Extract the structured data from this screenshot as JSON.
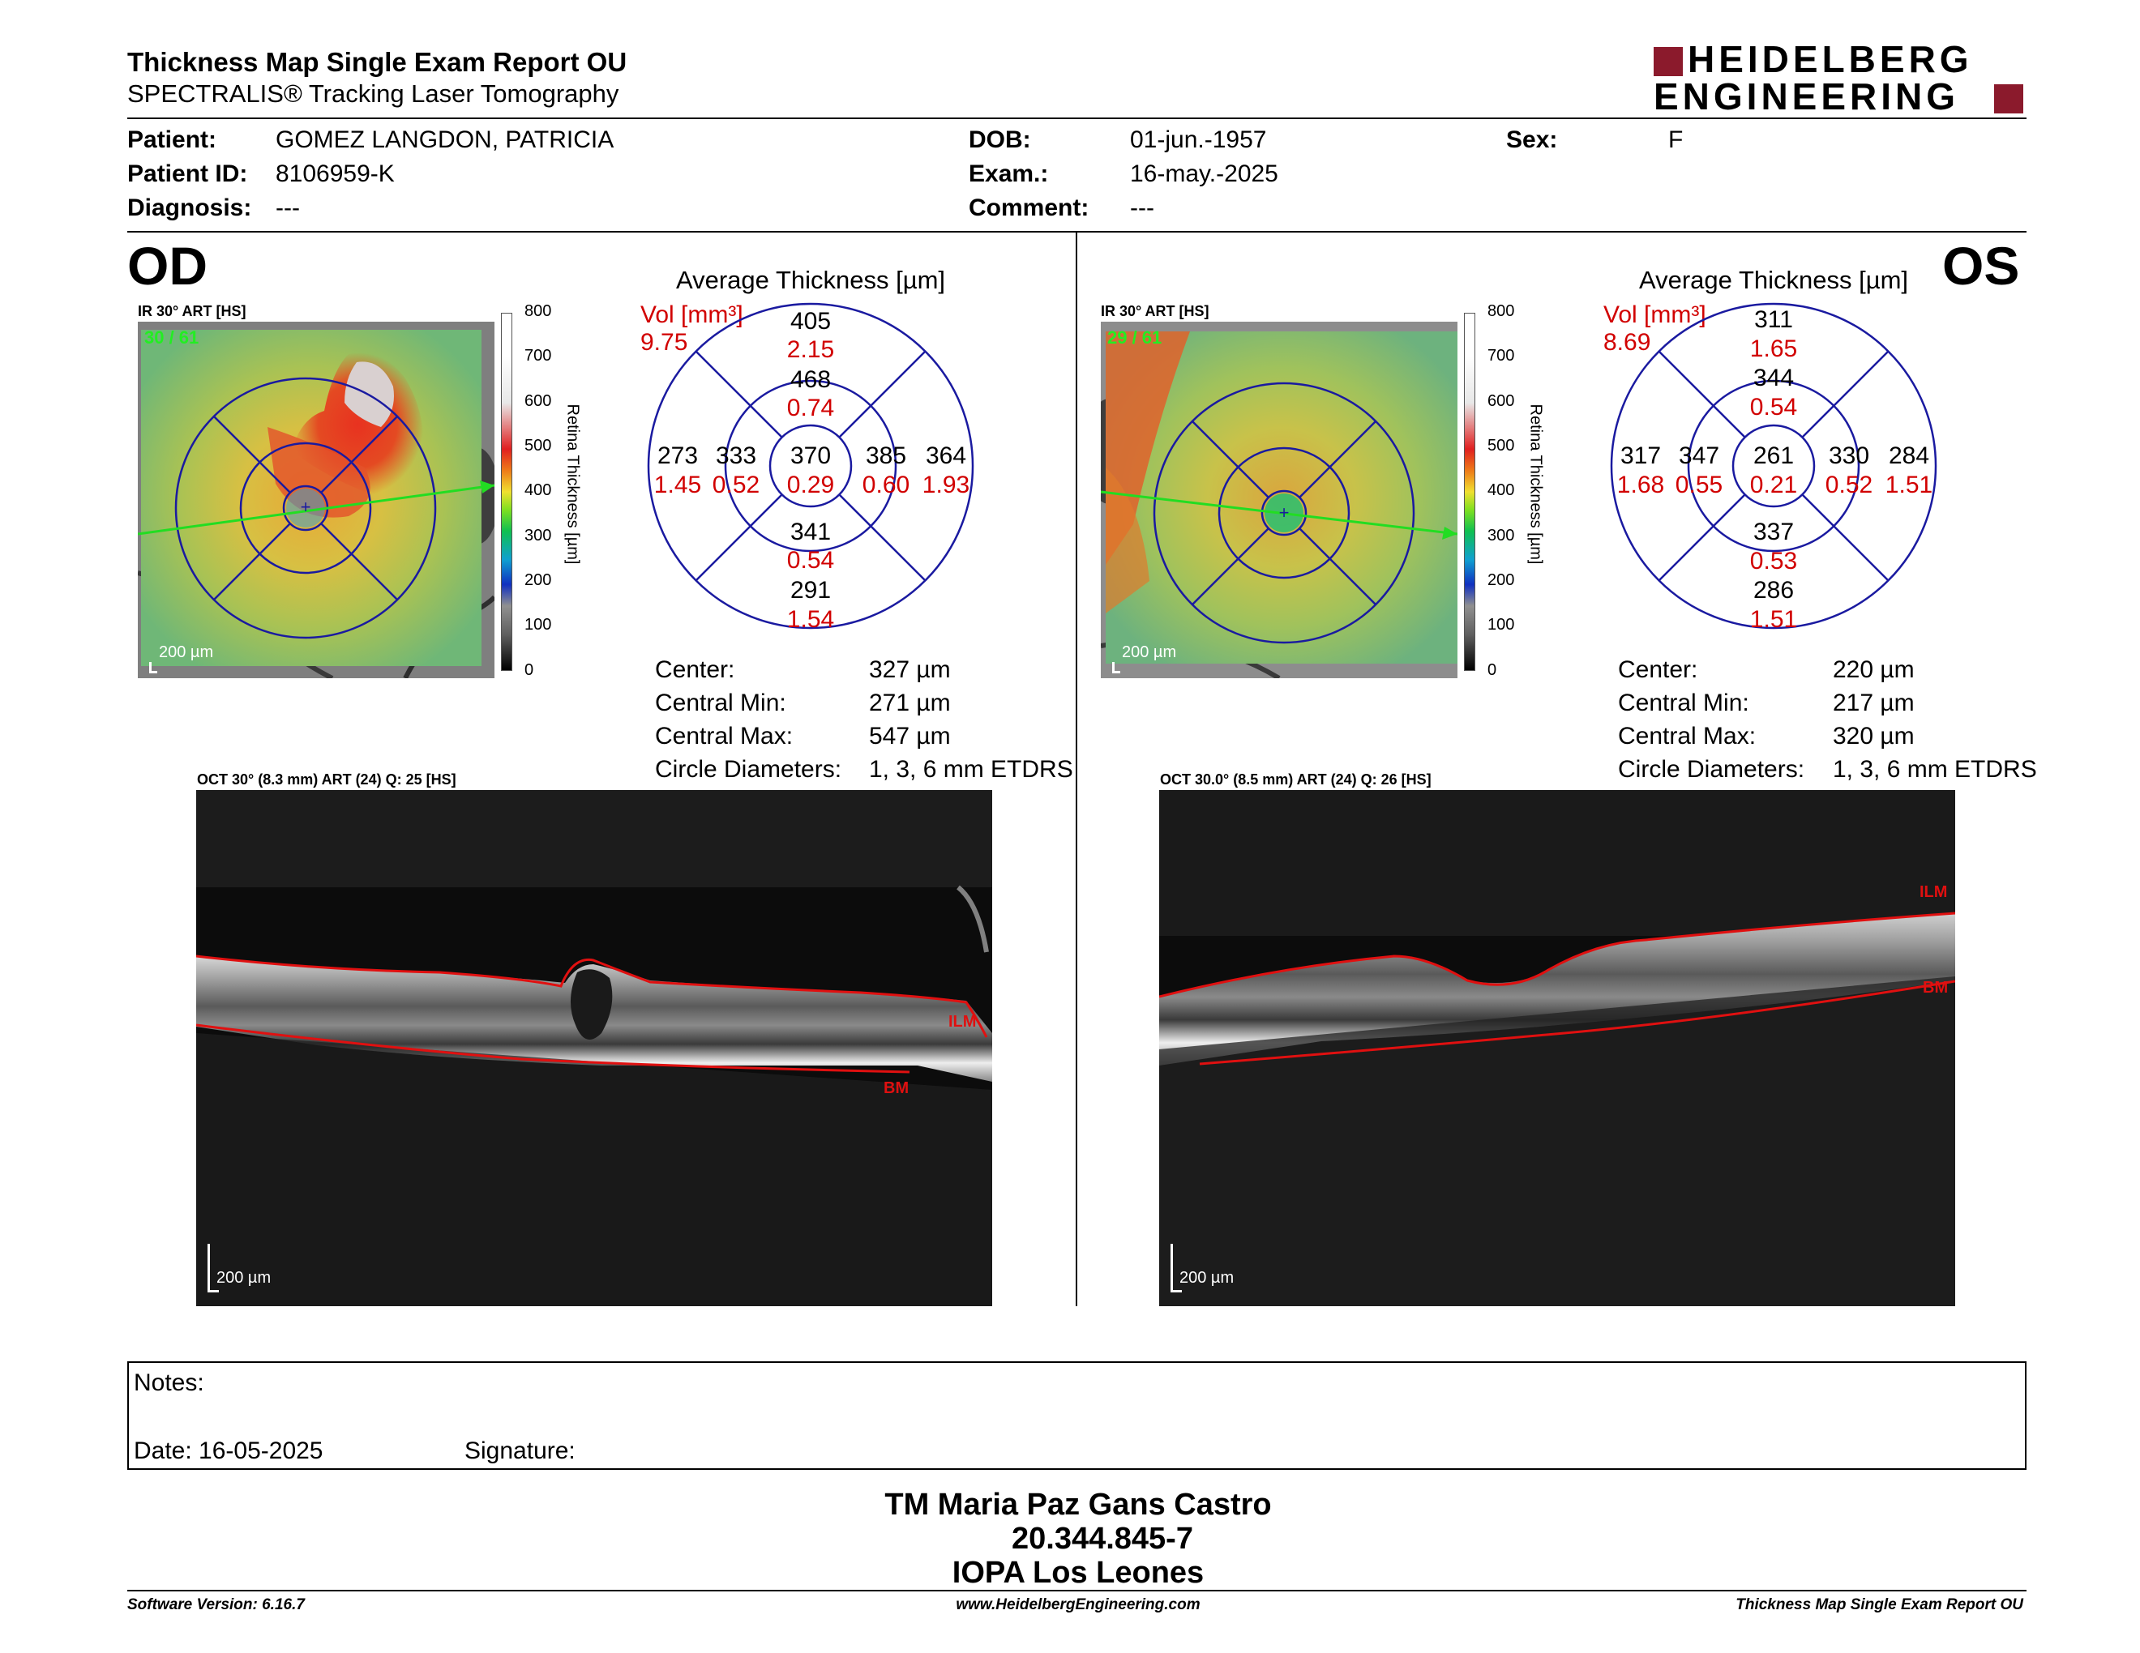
{
  "header": {
    "title": "Thickness Map Single Exam Report OU",
    "subtitle": "SPECTRALIS® Tracking Laser Tomography",
    "logo_line1": "HEIDELBERG",
    "logo_line2": "ENGINEERING"
  },
  "patient": {
    "patient_label": "Patient:",
    "patient_value": "GOMEZ LANGDON, PATRICIA",
    "id_label": "Patient ID:",
    "id_value": "8106959-K",
    "diag_label": "Diagnosis:",
    "diag_value": "---",
    "dob_label": "DOB:",
    "dob_value": "01-jun.-1957",
    "exam_label": "Exam.:",
    "exam_value": "16-may.-2025",
    "comment_label": "Comment:",
    "comment_value": "---",
    "sex_label": "Sex:",
    "sex_value": "F"
  },
  "colorbar": {
    "ticks": [
      "800",
      "700",
      "600",
      "500",
      "400",
      "300",
      "200",
      "100",
      "0"
    ],
    "label": "Retina Thickness [µm]"
  },
  "od": {
    "eye": "OD",
    "fundus_label": "IR 30° ART [HS]",
    "frames": "30 / 61",
    "scale": "200 µm",
    "avg_title": "Average Thickness [µm]",
    "vol_label": "Vol [mm³]",
    "vol_value": "9.75",
    "grid": {
      "outer_sup": {
        "t": "405",
        "v": "2.15"
      },
      "inner_sup": {
        "t": "468",
        "v": "0.74"
      },
      "outer_left": {
        "t": "273",
        "v": "1.45"
      },
      "inner_left": {
        "t": "333",
        "v": "0.52"
      },
      "center": {
        "t": "370",
        "v": "0.29"
      },
      "inner_right": {
        "t": "385",
        "v": "0.60"
      },
      "outer_right": {
        "t": "364",
        "v": "1.93"
      },
      "inner_inf": {
        "t": "341",
        "v": "0.54"
      },
      "outer_inf": {
        "t": "291",
        "v": "1.54"
      }
    },
    "stats": [
      {
        "label": "Center:",
        "value": "327 µm"
      },
      {
        "label": "Central Min:",
        "value": "271 µm"
      },
      {
        "label": "Central Max:",
        "value": "547 µm"
      },
      {
        "label": "Circle Diameters:",
        "value": "1, 3, 6 mm ETDRS"
      }
    ],
    "oct_label": "OCT 30° (8.3 mm) ART (24) Q: 25 [HS]",
    "ilm": "ILM",
    "bm": "BM",
    "oct_scale": "200 µm"
  },
  "os": {
    "eye": "OS",
    "fundus_label": "IR 30° ART [HS]",
    "frames": "29 / 61",
    "scale": "200 µm",
    "avg_title": "Average Thickness [µm]",
    "vol_label": "Vol [mm³]",
    "vol_value": "8.69",
    "grid": {
      "outer_sup": {
        "t": "311",
        "v": "1.65"
      },
      "inner_sup": {
        "t": "344",
        "v": "0.54"
      },
      "outer_left": {
        "t": "317",
        "v": "1.68"
      },
      "inner_left": {
        "t": "347",
        "v": "0.55"
      },
      "center": {
        "t": "261",
        "v": "0.21"
      },
      "inner_right": {
        "t": "330",
        "v": "0.52"
      },
      "outer_right": {
        "t": "284",
        "v": "1.51"
      },
      "inner_inf": {
        "t": "337",
        "v": "0.53"
      },
      "outer_inf": {
        "t": "286",
        "v": "1.51"
      }
    },
    "stats": [
      {
        "label": "Center:",
        "value": "220 µm"
      },
      {
        "label": "Central Min:",
        "value": "217 µm"
      },
      {
        "label": "Central Max:",
        "value": "320 µm"
      },
      {
        "label": "Circle Diameters:",
        "value": "1, 3, 6 mm ETDRS"
      }
    ],
    "oct_label": "OCT 30.0° (8.5 mm) ART (24) Q: 26 [HS]",
    "ilm": "ILM",
    "bm": "BM",
    "oct_scale": "200 µm"
  },
  "notes": {
    "notes_label": "Notes:",
    "date_label": "Date: 16-05-2025",
    "signature_label": "Signature:"
  },
  "signer": {
    "name": "TM Maria Paz Gans Castro",
    "id": "20.344.845-7",
    "institution": "IOPA Los Leones"
  },
  "footer": {
    "software": "Software Version: 6.16.7",
    "website": "www.HeidelbergEngineering.com",
    "report": "Thickness Map Single Exam Report OU"
  }
}
